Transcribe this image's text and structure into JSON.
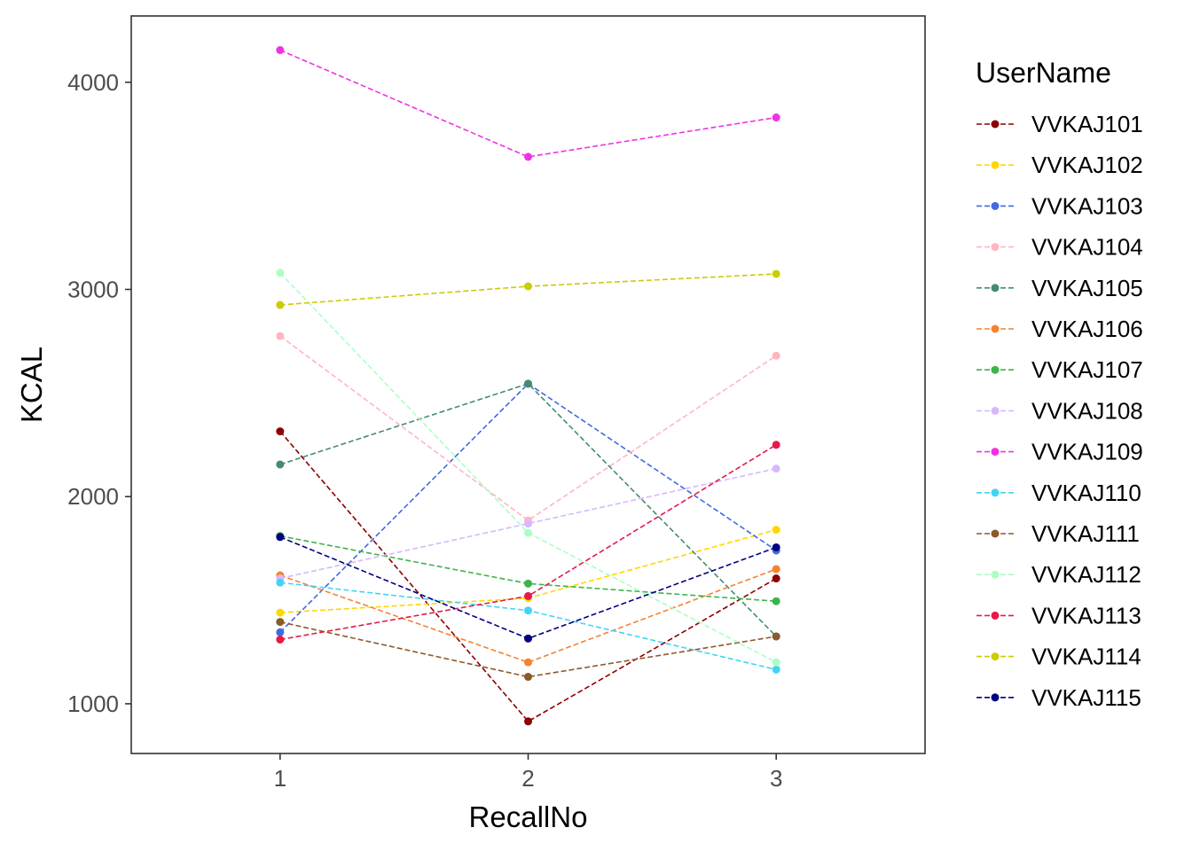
{
  "chart_data": {
    "type": "line",
    "xlabel": "RecallNo",
    "ylabel": "KCAL",
    "x": [
      1,
      2,
      3
    ],
    "x_tick_labels": [
      "1",
      "2",
      "3"
    ],
    "xlim": [
      0.4,
      3.6
    ],
    "y_ticks": [
      1000,
      2000,
      3000,
      4000
    ],
    "y_tick_labels": [
      "1000",
      "2000",
      "3000",
      "4000"
    ],
    "ylim": [
      760,
      4320
    ],
    "grid": false,
    "line_style": "dashed",
    "legend": {
      "title": "UserName",
      "position": "right"
    },
    "series": [
      {
        "name": "VVKAJ101",
        "color": "#8B0000",
        "values": [
          2315,
          915,
          1605
        ]
      },
      {
        "name": "VVKAJ102",
        "color": "#FFD700",
        "values": [
          1440,
          1510,
          1840
        ]
      },
      {
        "name": "VVKAJ103",
        "color": "#4169E1",
        "values": [
          1345,
          2545,
          1740
        ]
      },
      {
        "name": "VVKAJ104",
        "color": "#FFB6C1",
        "values": [
          2775,
          1885,
          2680
        ]
      },
      {
        "name": "VVKAJ105",
        "color": "#458B74",
        "values": [
          2155,
          2545,
          1325
        ]
      },
      {
        "name": "VVKAJ106",
        "color": "#F58231",
        "values": [
          1620,
          1200,
          1650
        ]
      },
      {
        "name": "VVKAJ107",
        "color": "#3CB44B",
        "values": [
          1810,
          1580,
          1495
        ]
      },
      {
        "name": "VVKAJ108",
        "color": "#D7B8FF",
        "values": [
          1605,
          1870,
          2135
        ]
      },
      {
        "name": "VVKAJ109",
        "color": "#F032E6",
        "values": [
          4155,
          3640,
          3830
        ]
      },
      {
        "name": "VVKAJ110",
        "color": "#42D4F4",
        "values": [
          1585,
          1450,
          1165
        ]
      },
      {
        "name": "VVKAJ111",
        "color": "#8B5A2B",
        "values": [
          1395,
          1130,
          1325
        ]
      },
      {
        "name": "VVKAJ112",
        "color": "#AAFFC3",
        "values": [
          3080,
          1825,
          1200
        ]
      },
      {
        "name": "VVKAJ113",
        "color": "#E6194B",
        "values": [
          1310,
          1520,
          2250
        ]
      },
      {
        "name": "VVKAJ114",
        "color": "#CCCC00",
        "values": [
          2925,
          3015,
          3075
        ]
      },
      {
        "name": "VVKAJ115",
        "color": "#000080",
        "values": [
          1805,
          1315,
          1755
        ]
      }
    ]
  }
}
